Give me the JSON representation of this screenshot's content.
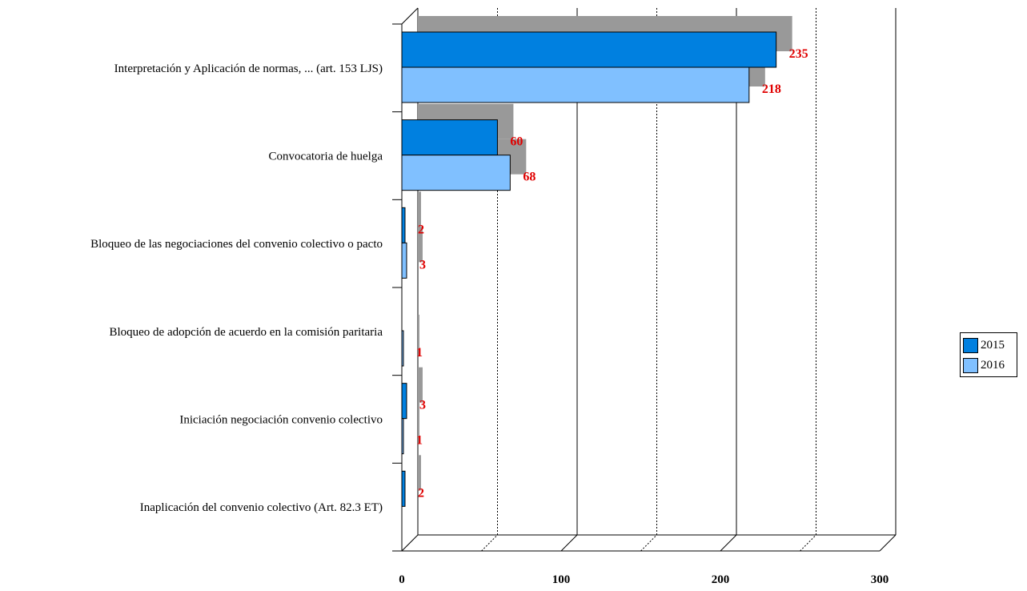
{
  "chart_data": {
    "type": "bar",
    "orientation": "horizontal",
    "style": "3d",
    "categories": [
      "Interpretación y Aplicación de normas, ... (art. 153 LJS)",
      "Convocatoria de huelga",
      "Bloqueo de las negociaciones del convenio colectivo  o pacto",
      "Bloqueo de adopción de acuerdo en la comisión paritaria",
      "Iniciación negociación convenio colectivo",
      "Inaplicación del convenio colectivo (Art. 82.3 ET)"
    ],
    "series": [
      {
        "name": "2015",
        "color": "#0080e0",
        "values": [
          235,
          60,
          2,
          0,
          3,
          2
        ],
        "labels": [
          "235",
          "60",
          "2",
          "",
          "3",
          "2"
        ]
      },
      {
        "name": "2016",
        "color": "#80c0ff",
        "values": [
          218,
          68,
          3,
          1,
          1,
          0
        ],
        "labels": [
          "218",
          "68",
          "3",
          "1",
          "1",
          ""
        ]
      }
    ],
    "xlim": [
      0,
      300
    ],
    "xticks": [
      "0",
      "100",
      "200",
      "300"
    ],
    "grid": true,
    "legend_position": "right",
    "label_color": "#e00000",
    "shadow_color": "#999999"
  }
}
